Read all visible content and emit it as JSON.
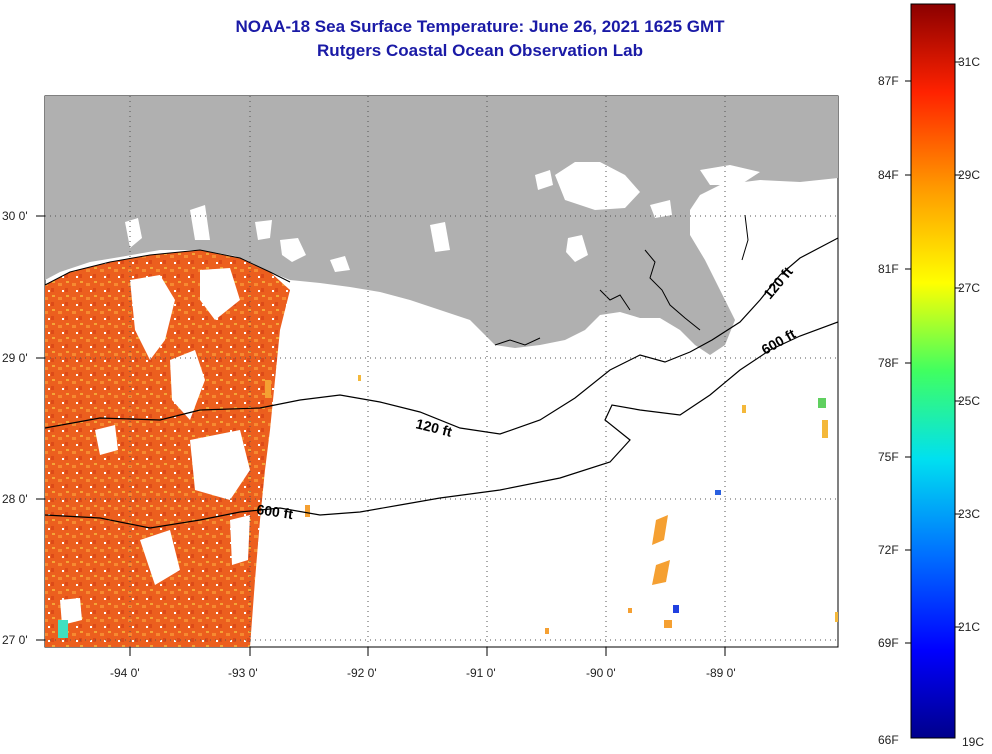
{
  "title": {
    "line1": "NOAA-18 Sea Surface Temperature:  June 26, 2021 1625 GMT",
    "line2": "Rutgers Coastal Ocean Observation Lab",
    "color": "#1a1aa6"
  },
  "map": {
    "land_color": "#b0b0b0",
    "lon_labels": [
      "-94 0'",
      "-93 0'",
      "-92 0'",
      "-91 0'",
      "-90 0'",
      "-89 0'"
    ],
    "lat_labels": [
      "30 0'",
      "29 0'",
      "28 0'",
      "27 0'"
    ],
    "contour_labels": [
      "120 ft",
      "600 ft",
      "120 ft",
      "600 ft"
    ],
    "sst_colors": [
      "#e8501e",
      "#f07828",
      "#f5a032",
      "#e06a1a",
      "#f4b83a"
    ]
  },
  "colorbar": {
    "fahrenheit_labels": [
      "87F",
      "84F",
      "81F",
      "78F",
      "75F",
      "72F",
      "69F",
      "66F"
    ],
    "celsius_labels": [
      "31C",
      "29C",
      "27C",
      "25C",
      "23C",
      "21C",
      "19C"
    ]
  }
}
